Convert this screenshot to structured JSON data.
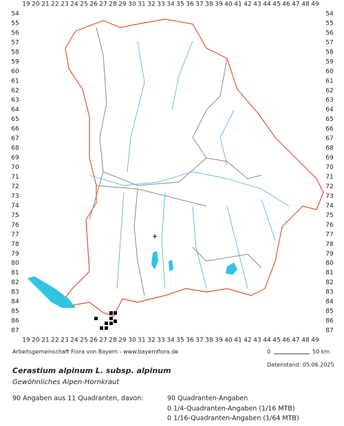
{
  "grid": {
    "columns": [
      19,
      20,
      21,
      22,
      23,
      24,
      25,
      26,
      27,
      28,
      29,
      30,
      31,
      32,
      33,
      34,
      35,
      36,
      37,
      38,
      39,
      40,
      41,
      42,
      43,
      44,
      45,
      46,
      47,
      48,
      49
    ],
    "rows": [
      54,
      55,
      56,
      57,
      58,
      59,
      60,
      61,
      62,
      63,
      64,
      65,
      66,
      67,
      68,
      69,
      70,
      71,
      72,
      73,
      74,
      75,
      76,
      77,
      78,
      79,
      80,
      81,
      82,
      83,
      84,
      85,
      86,
      87
    ]
  },
  "footer": {
    "credit": "Arbeitsgemeinschaft Flora von Bayern - www.bayernflora.de",
    "scale_start": "0",
    "scale_end": "50 km",
    "date": "Datenstand: 05.06.2025"
  },
  "species": {
    "title": "Cerastium alpinum L. subsp. alpinum",
    "subtitle": "Gewöhnliches Alpen-Hornkraut"
  },
  "stats": {
    "summary": "90 Angaben aus 11 Quadranten, davon:",
    "lines": [
      "90 Quadranten-Angaben",
      "0 1/4-Quadranten-Angaben (1/16 MTB)",
      "0 1/16-Quadranten-Angaben (1/64 MTB)"
    ]
  }
}
